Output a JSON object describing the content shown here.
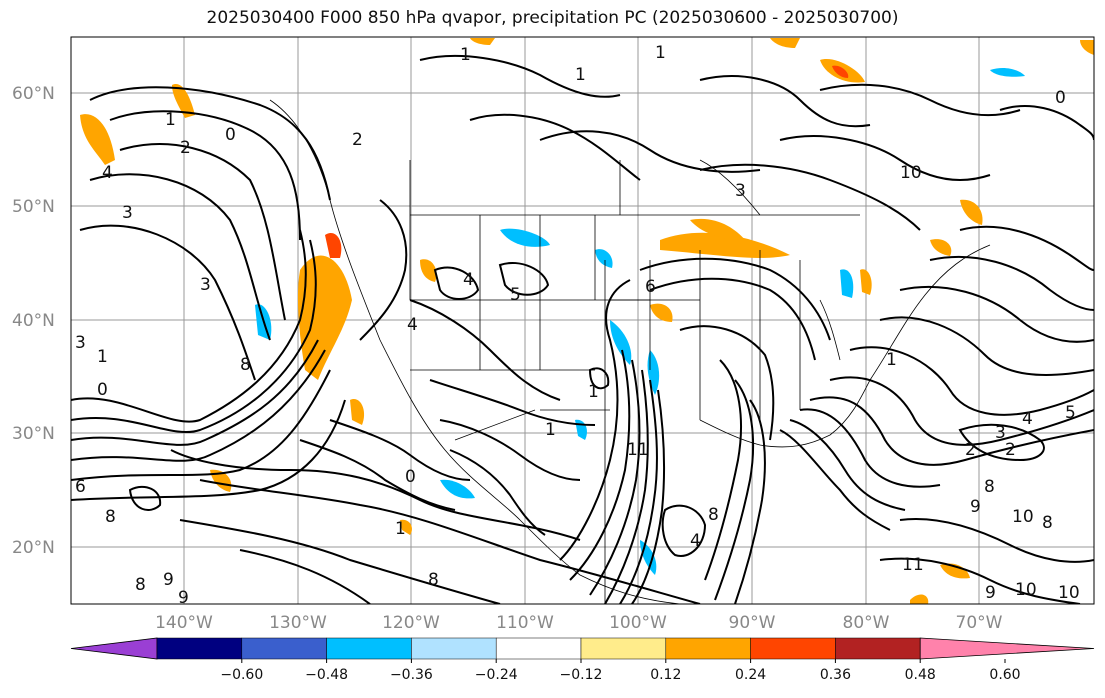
{
  "title": "2025030400 F000 850 hPa qvapor, precipitation PC (2025030600 - 2025030700)",
  "lat_labels": [
    "60°N",
    "50°N",
    "40°N",
    "30°N",
    "20°N"
  ],
  "lon_labels": [
    "140°W",
    "130°W",
    "120°W",
    "110°W",
    "100°W",
    "90°W",
    "80°W",
    "70°W"
  ],
  "colorbar": {
    "colors": [
      "#9a3fd4",
      "#000080",
      "#3a5fcd",
      "#00bfff",
      "#b0e2ff",
      "#ffffff",
      "#ffec8b",
      "#ffa500",
      "#ff4500",
      "#b22222",
      "#ff82ab"
    ],
    "ticks": [
      "−0.60",
      "−0.48",
      "−0.36",
      "−0.24",
      "−0.12",
      "0.12",
      "0.24",
      "0.36",
      "0.48",
      "0.60"
    ]
  },
  "contour_labels": [
    "1",
    "1",
    "1",
    "1",
    "0",
    "2",
    "2",
    "3",
    "3",
    "4",
    "4",
    "3",
    "5",
    "4",
    "6",
    "8",
    "0",
    "1",
    "6",
    "8",
    "9",
    "8",
    "9",
    "11",
    "0",
    "4",
    "8",
    "10",
    "11",
    "5",
    "2",
    "3",
    "2",
    "4",
    "1",
    "8",
    "9",
    "8",
    "10",
    "8",
    "9",
    "10",
    "10",
    "1",
    "1",
    "3",
    "0",
    "1"
  ]
}
